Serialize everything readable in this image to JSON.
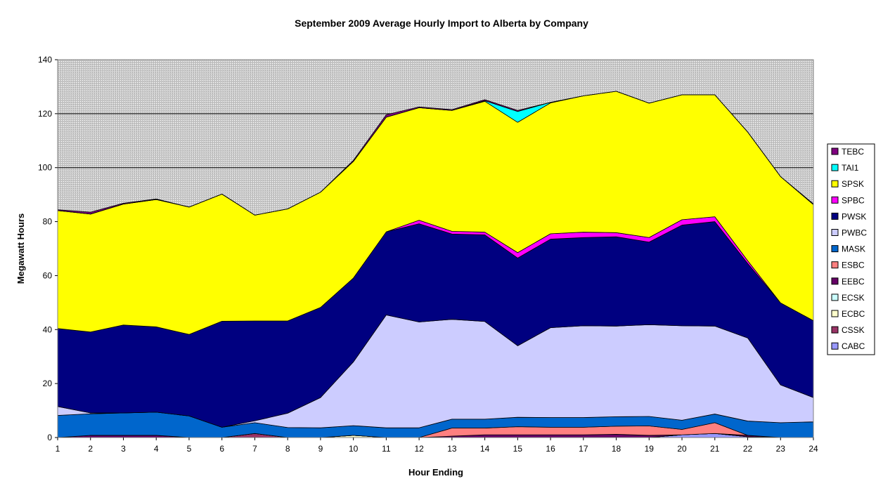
{
  "chart_data": {
    "type": "area",
    "stacked": true,
    "title": "September 2009 Average Hourly Import to Alberta by Company",
    "xlabel": "Hour Ending",
    "ylabel": "Megawatt Hours",
    "ylim": [
      0,
      140
    ],
    "yticks": [
      0,
      20,
      40,
      60,
      80,
      100,
      120,
      140
    ],
    "gridlines": [
      120,
      100
    ],
    "plot_background": "hatched gray",
    "legend_position": "right",
    "x": [
      1,
      2,
      3,
      4,
      5,
      6,
      7,
      8,
      9,
      10,
      11,
      12,
      13,
      14,
      15,
      16,
      17,
      18,
      19,
      20,
      21,
      22,
      23,
      24
    ],
    "series": [
      {
        "name": "CABC",
        "color": "#9999FF",
        "values": [
          0,
          0,
          0,
          0,
          0,
          0,
          0,
          0,
          0,
          0,
          0,
          0,
          0,
          0,
          0,
          0,
          0,
          0,
          0,
          1,
          1.5,
          0.3,
          0,
          0
        ]
      },
      {
        "name": "CSSK",
        "color": "#993366",
        "values": [
          0,
          0,
          0,
          0,
          0,
          0,
          1.5,
          0,
          0,
          0,
          0,
          0,
          0,
          0,
          0,
          0,
          0,
          0,
          0,
          0,
          0,
          0,
          0,
          0
        ]
      },
      {
        "name": "ECBC",
        "color": "#FFFFCC",
        "values": [
          0,
          0,
          0,
          0,
          0,
          0,
          0,
          0,
          0,
          0.8,
          0,
          0,
          0,
          0,
          0,
          0,
          0,
          0,
          0,
          0,
          0,
          0,
          0,
          0
        ]
      },
      {
        "name": "ECSK",
        "color": "#CCFFFF",
        "values": [
          0,
          0,
          0,
          0,
          0,
          0,
          0,
          0,
          0,
          0,
          0,
          0,
          0,
          0,
          0,
          0,
          0,
          0,
          0,
          0,
          0,
          0,
          0,
          0
        ]
      },
      {
        "name": "EEBC",
        "color": "#660066",
        "values": [
          0,
          0.8,
          0.8,
          0.8,
          0,
          0,
          0,
          0,
          0,
          0,
          0,
          0,
          0.5,
          1,
          1,
          1,
          1,
          1.2,
          0.8,
          0,
          0,
          0.5,
          0,
          0
        ]
      },
      {
        "name": "ESBC",
        "color": "#FF8080",
        "values": [
          0,
          0,
          0,
          0,
          0,
          0,
          0,
          0,
          0,
          0,
          0,
          0,
          3,
          2.5,
          3,
          2.8,
          2.8,
          3,
          3.5,
          2,
          4,
          0,
          0,
          0
        ]
      },
      {
        "name": "MASK",
        "color": "#0066CC",
        "values": [
          8.2,
          8,
          8.3,
          8.6,
          8,
          3.8,
          4,
          3.7,
          3.6,
          3.6,
          3.6,
          3.6,
          3.3,
          3.3,
          3.5,
          3.6,
          3.6,
          3.5,
          3.5,
          3.4,
          3.2,
          5.3,
          5.5,
          5.8
        ]
      },
      {
        "name": "PWBC",
        "color": "#CCCCFF",
        "values": [
          3.3,
          0.3,
          0,
          0,
          0,
          0,
          0.7,
          5.3,
          11.2,
          23.6,
          41.8,
          39.2,
          37,
          36.2,
          26.5,
          33.3,
          34,
          33.6,
          34,
          35,
          32.6,
          30.8,
          14,
          9
        ]
      },
      {
        "name": "PWSK",
        "color": "#000080",
        "values": [
          28.9,
          30,
          32.6,
          31.6,
          30.2,
          39.3,
          37,
          34.2,
          33.4,
          31.1,
          30.8,
          36.4,
          31.6,
          32.1,
          32.5,
          32.8,
          32.7,
          33.1,
          30.6,
          37.3,
          38.7,
          27.6,
          30.4,
          28.5
        ]
      },
      {
        "name": "SPBC",
        "color": "#FF00FF",
        "values": [
          0,
          0,
          0,
          0,
          0,
          0,
          0,
          0,
          0,
          0,
          0,
          1.3,
          1,
          1,
          2,
          2,
          2,
          1.5,
          1.7,
          2,
          1.8,
          1,
          0,
          0
        ]
      },
      {
        "name": "SPSK",
        "color": "#FFFF00",
        "values": [
          43.7,
          43.7,
          44.8,
          47.2,
          47.2,
          47.1,
          39.2,
          41.5,
          42.7,
          43.2,
          42.5,
          41.7,
          44.8,
          48.5,
          48.3,
          48.5,
          50.5,
          52.4,
          49.8,
          46.3,
          45.2,
          47.7,
          46.8,
          43
        ]
      },
      {
        "name": "TAI1",
        "color": "#00FFFF",
        "values": [
          0,
          0,
          0,
          0,
          0,
          0,
          0,
          0,
          0,
          0,
          0,
          0,
          0,
          0.2,
          4,
          0.2,
          0,
          0,
          0,
          0,
          0,
          0,
          0,
          0
        ]
      },
      {
        "name": "TEBC",
        "color": "#800080",
        "values": [
          0.3,
          0.7,
          0.3,
          0.2,
          0,
          0,
          0,
          0,
          0,
          0.4,
          0.9,
          0.3,
          0.3,
          0.4,
          0.4,
          0,
          0,
          0,
          0,
          0,
          0,
          0,
          0,
          0.3
        ]
      }
    ]
  }
}
